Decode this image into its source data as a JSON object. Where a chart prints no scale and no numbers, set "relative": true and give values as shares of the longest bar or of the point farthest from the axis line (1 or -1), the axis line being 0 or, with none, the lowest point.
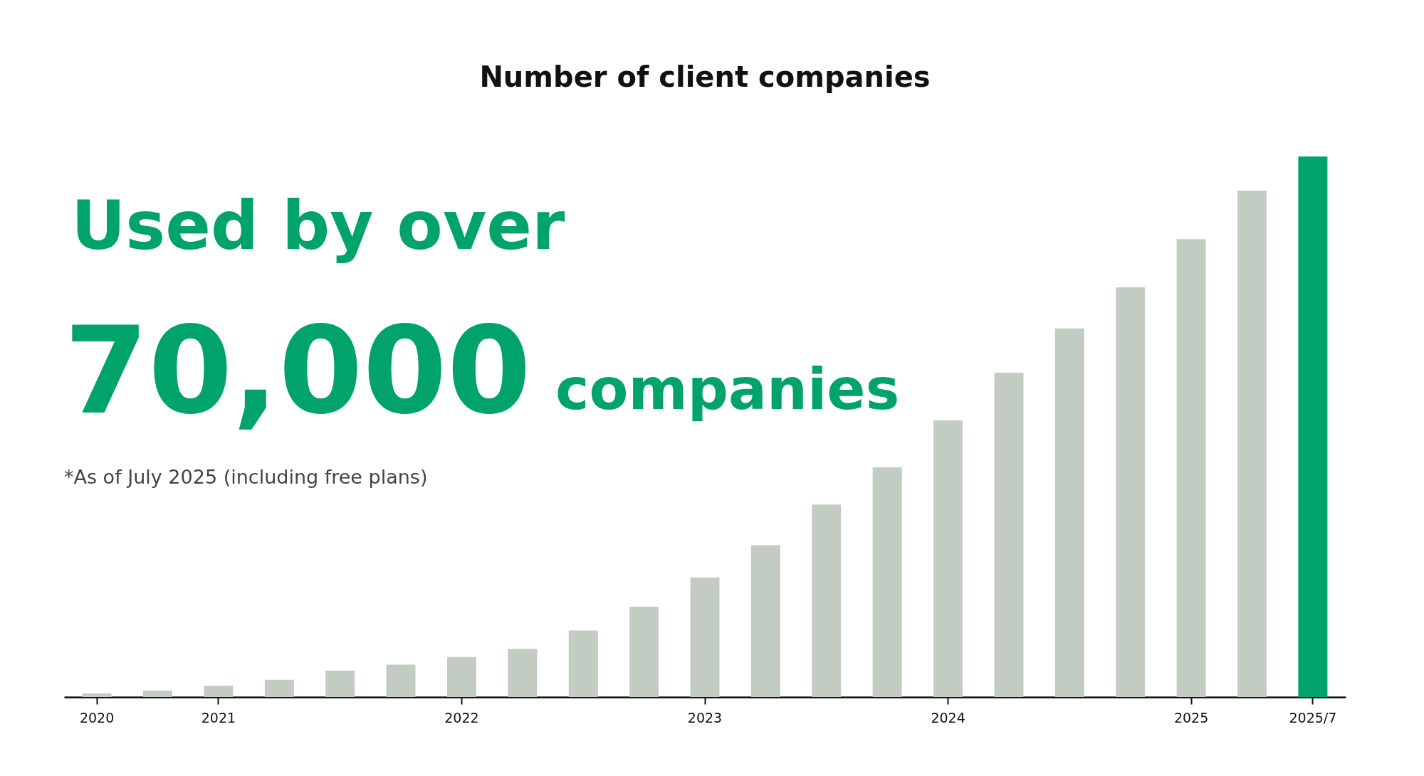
{
  "chart_data": {
    "type": "bar",
    "title": "Number of client companies",
    "relative": true,
    "categories": [
      "2020",
      null,
      "2021",
      null,
      null,
      null,
      "2022",
      null,
      null,
      null,
      "2023",
      null,
      null,
      null,
      "2024",
      null,
      null,
      null,
      "2025",
      null,
      "2025/7"
    ],
    "values": [
      0.007,
      0.012,
      0.021,
      0.032,
      0.049,
      0.06,
      0.074,
      0.089,
      0.123,
      0.167,
      0.221,
      0.281,
      0.356,
      0.425,
      0.512,
      0.6,
      0.682,
      0.758,
      0.847,
      0.937,
      1.0
    ],
    "colors": [
      "#c2ccc2",
      "#c2ccc2",
      "#c2ccc2",
      "#c2ccc2",
      "#c2ccc2",
      "#c2ccc2",
      "#c2ccc2",
      "#c2ccc2",
      "#c2ccc2",
      "#c2ccc2",
      "#c2ccc2",
      "#c2ccc2",
      "#c2ccc2",
      "#c2ccc2",
      "#c2ccc2",
      "#c2ccc2",
      "#c2ccc2",
      "#c2ccc2",
      "#c2ccc2",
      "#c2ccc2",
      "#00a36a"
    ],
    "annotations": [
      "Used by over",
      "70,000",
      "companies",
      "*As of July 2025 (including free plans)"
    ],
    "grid": false
  }
}
